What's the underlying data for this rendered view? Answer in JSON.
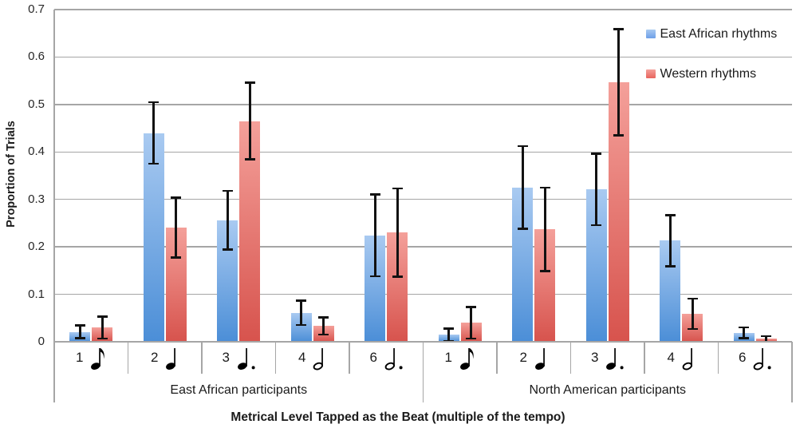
{
  "chart_data": {
    "type": "bar",
    "title": "",
    "ylabel": "Proportion of Trials",
    "xlabel": "Metrical Level Tapped as the Beat (multiple of the tempo)",
    "ylim": [
      0,
      0.7
    ],
    "yticks": [
      0,
      0.1,
      0.2,
      0.3,
      0.4,
      0.5,
      0.6,
      0.7
    ],
    "grid": true,
    "legend_position": "top-right-inside",
    "error_bars": true,
    "groups": [
      {
        "label": "East African participants",
        "categories": [
          {
            "multiple": "1",
            "note_icon": "eighth-note"
          },
          {
            "multiple": "2",
            "note_icon": "quarter-note"
          },
          {
            "multiple": "3",
            "note_icon": "dotted-quarter-note"
          },
          {
            "multiple": "4",
            "note_icon": "half-note"
          },
          {
            "multiple": "6",
            "note_icon": "dotted-half-note"
          }
        ]
      },
      {
        "label": "North American participants",
        "categories": [
          {
            "multiple": "1",
            "note_icon": "eighth-note"
          },
          {
            "multiple": "2",
            "note_icon": "quarter-note"
          },
          {
            "multiple": "3",
            "note_icon": "dotted-quarter-note"
          },
          {
            "multiple": "4",
            "note_icon": "half-note"
          },
          {
            "multiple": "6",
            "note_icon": "dotted-half-note"
          }
        ]
      }
    ],
    "series": [
      {
        "name": "East African rhythms",
        "legend_color": "#6d9fe8",
        "bar_color_top": "#a9caf1",
        "bar_color_bottom": "#4b8ed7",
        "values": [
          [
            0.021,
            0.44,
            0.256,
            0.061,
            0.224
          ],
          [
            0.015,
            0.325,
            0.321,
            0.213,
            0.019
          ]
        ],
        "errors": [
          [
            0.013,
            0.065,
            0.062,
            0.026,
            0.086
          ],
          [
            0.013,
            0.087,
            0.075,
            0.054,
            0.011
          ]
        ]
      },
      {
        "name": "Western rhythms",
        "legend_color": "#e8645d",
        "bar_color_top": "#f4a09a",
        "bar_color_bottom": "#d7534d",
        "values": [
          [
            0.03,
            0.241,
            0.465,
            0.033,
            0.23
          ],
          [
            0.04,
            0.237,
            0.547,
            0.059,
            0.006
          ]
        ],
        "errors": [
          [
            0.023,
            0.063,
            0.081,
            0.018,
            0.093
          ],
          [
            0.033,
            0.088,
            0.112,
            0.032,
            0.006
          ]
        ]
      }
    ],
    "colors": {
      "gridline": "#a6a6a6",
      "axis": "#a6a6a6",
      "error_bar": "#121212",
      "text": "#1a1a1a"
    }
  }
}
